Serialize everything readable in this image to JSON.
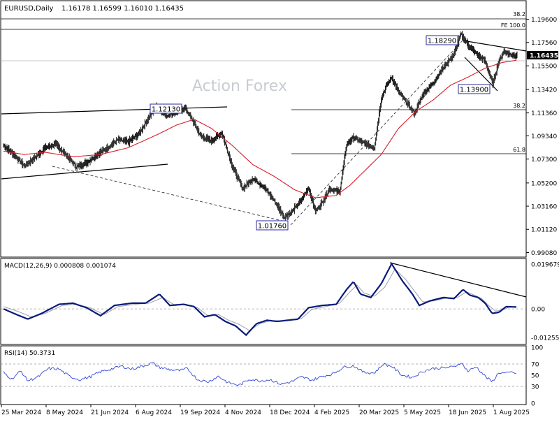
{
  "header": {
    "symbol": "EURUSD,Daily",
    "ohlc": "1.16178 1.16599 1.16010 1.16435"
  },
  "watermark": "Action Forex",
  "colors": {
    "bars": "#1a1a1a",
    "sma": "#d61f2a",
    "macd_line": "#0a1a7a",
    "signal_line": "#9aa0a8",
    "rsi_line": "#3048d8",
    "label_box_border": "#2a2aa0",
    "grid": "#cfcfcf"
  },
  "chart_data": [
    {
      "type": "ohlc",
      "panel": "price",
      "title": "EURUSD,Daily",
      "ylim": [
        0.988,
        1.208
      ],
      "y_ticks": [
        "1.19600",
        "1.17560",
        "1.15500",
        "1.13420",
        "1.11360",
        "1.09340",
        "1.07300",
        "1.05200",
        "1.03160",
        "1.01120",
        "0.99080"
      ],
      "last_price_label": "1.16435",
      "x_tick_labels": [
        "25 Mar 2024",
        "8 May 2024",
        "21 Jun 2024",
        "6 Aug 2024",
        "19 Sep 2024",
        "4 Nov 2024",
        "18 Dec 2024",
        "4 Feb 2025",
        "20 Mar 2025",
        "5 May 2025",
        "18 Jun 2025",
        "1 Aug 2025"
      ],
      "keypoints": [
        [
          0,
          1.085
        ],
        [
          15,
          1.077
        ],
        [
          30,
          1.067
        ],
        [
          45,
          1.074
        ],
        [
          60,
          1.083
        ],
        [
          75,
          1.086
        ],
        [
          90,
          1.077
        ],
        [
          105,
          1.066
        ],
        [
          120,
          1.07
        ],
        [
          135,
          1.077
        ],
        [
          150,
          1.083
        ],
        [
          165,
          1.09
        ],
        [
          180,
          1.088
        ],
        [
          195,
          1.095
        ],
        [
          210,
          1.11
        ],
        [
          220,
          1.119
        ],
        [
          235,
          1.111
        ],
        [
          250,
          1.115
        ],
        [
          262,
          1.118
        ],
        [
          272,
          1.108
        ],
        [
          285,
          1.093
        ],
        [
          300,
          1.089
        ],
        [
          315,
          1.096
        ],
        [
          330,
          1.067
        ],
        [
          345,
          1.047
        ],
        [
          360,
          1.056
        ],
        [
          375,
          1.049
        ],
        [
          390,
          1.037
        ],
        [
          405,
          1.022
        ],
        [
          415,
          1.026
        ],
        [
          430,
          1.037
        ],
        [
          440,
          1.048
        ],
        [
          450,
          1.027
        ],
        [
          460,
          1.035
        ],
        [
          470,
          1.047
        ],
        [
          485,
          1.044
        ],
        [
          495,
          1.086
        ],
        [
          505,
          1.092
        ],
        [
          520,
          1.087
        ],
        [
          535,
          1.083
        ],
        [
          545,
          1.126
        ],
        [
          552,
          1.137
        ],
        [
          560,
          1.145
        ],
        [
          570,
          1.132
        ],
        [
          580,
          1.124
        ],
        [
          593,
          1.113
        ],
        [
          605,
          1.13
        ],
        [
          620,
          1.14
        ],
        [
          635,
          1.154
        ],
        [
          650,
          1.165
        ],
        [
          660,
          1.1829
        ],
        [
          672,
          1.172
        ],
        [
          685,
          1.164
        ],
        [
          695,
          1.159
        ],
        [
          706,
          1.139
        ],
        [
          714,
          1.158
        ],
        [
          722,
          1.168
        ],
        [
          730,
          1.165
        ],
        [
          741,
          1.16435
        ]
      ],
      "sma_keypoints": [
        [
          0,
          1.08
        ],
        [
          30,
          1.077
        ],
        [
          60,
          1.079
        ],
        [
          100,
          1.075
        ],
        [
          140,
          1.077
        ],
        [
          180,
          1.083
        ],
        [
          220,
          1.094
        ],
        [
          250,
          1.103
        ],
        [
          275,
          1.108
        ],
        [
          300,
          1.1
        ],
        [
          330,
          1.085
        ],
        [
          360,
          1.068
        ],
        [
          390,
          1.058
        ],
        [
          420,
          1.046
        ],
        [
          450,
          1.039
        ],
        [
          480,
          1.041
        ],
        [
          500,
          1.05
        ],
        [
          520,
          1.062
        ],
        [
          545,
          1.077
        ],
        [
          570,
          1.1
        ],
        [
          595,
          1.115
        ],
        [
          620,
          1.125
        ],
        [
          645,
          1.138
        ],
        [
          670,
          1.145
        ],
        [
          695,
          1.153
        ],
        [
          720,
          1.158
        ],
        [
          741,
          1.16
        ]
      ],
      "annotations": {
        "labels": [
          "1.18290",
          "1.13900",
          "1.12130",
          "1.01760"
        ],
        "fib_labels": [
          "38.2",
          "FE 100.0",
          "38.2",
          "61.8"
        ]
      }
    },
    {
      "type": "line",
      "panel": "macd",
      "title": "MACD(12,26,9) 0.000808 0.001074",
      "ylim": [
        -0.015,
        0.0215
      ],
      "y_ticks": [
        "0.019679",
        "0.00",
        "-0.012552"
      ],
      "series": [
        {
          "name": "MACD",
          "keypoints": [
            [
              0,
              0.0
            ],
            [
              15,
              -0.002
            ],
            [
              35,
              -0.0045
            ],
            [
              55,
              -0.002
            ],
            [
              80,
              0.002
            ],
            [
              100,
              0.0025
            ],
            [
              120,
              0.0005
            ],
            [
              140,
              -0.003
            ],
            [
              160,
              0.0015
            ],
            [
              185,
              0.0025
            ],
            [
              205,
              0.0025
            ],
            [
              225,
              0.0065
            ],
            [
              240,
              0.0015
            ],
            [
              260,
              0.002
            ],
            [
              275,
              0.001
            ],
            [
              290,
              -0.0035
            ],
            [
              305,
              -0.0025
            ],
            [
              320,
              -0.0055
            ],
            [
              335,
              -0.0075
            ],
            [
              350,
              -0.0115
            ],
            [
              365,
              -0.0065
            ],
            [
              380,
              -0.005
            ],
            [
              395,
              -0.0055
            ],
            [
              410,
              -0.005
            ],
            [
              425,
              -0.0045
            ],
            [
              440,
              0.0005
            ],
            [
              460,
              0.0015
            ],
            [
              480,
              0.002
            ],
            [
              495,
              0.0085
            ],
            [
              505,
              0.012
            ],
            [
              515,
              0.0065
            ],
            [
              530,
              0.005
            ],
            [
              545,
              0.011
            ],
            [
              560,
              0.0198
            ],
            [
              575,
              0.0125
            ],
            [
              590,
              0.0065
            ],
            [
              600,
              0.0015
            ],
            [
              615,
              0.0035
            ],
            [
              635,
              0.005
            ],
            [
              650,
              0.0045
            ],
            [
              663,
              0.0085
            ],
            [
              673,
              0.006
            ],
            [
              685,
              0.005
            ],
            [
              695,
              0.0025
            ],
            [
              705,
              -0.002
            ],
            [
              715,
              -0.0015
            ],
            [
              725,
              0.001
            ],
            [
              741,
              0.0008
            ]
          ]
        },
        {
          "name": "Signal",
          "keypoints": [
            [
              0,
              0.001
            ],
            [
              20,
              -0.001
            ],
            [
              40,
              -0.0035
            ],
            [
              60,
              -0.002
            ],
            [
              85,
              0.0015
            ],
            [
              105,
              0.002
            ],
            [
              125,
              0.0005
            ],
            [
              145,
              -0.0025
            ],
            [
              165,
              0.001
            ],
            [
              190,
              0.002
            ],
            [
              210,
              0.0025
            ],
            [
              230,
              0.005
            ],
            [
              245,
              0.002
            ],
            [
              265,
              0.0018
            ],
            [
              280,
              0.0005
            ],
            [
              295,
              -0.003
            ],
            [
              310,
              -0.0025
            ],
            [
              325,
              -0.005
            ],
            [
              340,
              -0.0068
            ],
            [
              355,
              -0.0095
            ],
            [
              370,
              -0.0065
            ],
            [
              385,
              -0.0052
            ],
            [
              400,
              -0.0053
            ],
            [
              415,
              -0.005
            ],
            [
              430,
              -0.0042
            ],
            [
              445,
              -0.0002
            ],
            [
              465,
              0.001
            ],
            [
              485,
              0.0025
            ],
            [
              500,
              0.0075
            ],
            [
              510,
              0.0105
            ],
            [
              520,
              0.007
            ],
            [
              535,
              0.0055
            ],
            [
              550,
              0.0095
            ],
            [
              565,
              0.0175
            ],
            [
              580,
              0.013
            ],
            [
              595,
              0.007
            ],
            [
              605,
              0.003
            ],
            [
              620,
              0.0035
            ],
            [
              640,
              0.0048
            ],
            [
              655,
              0.005
            ],
            [
              668,
              0.0075
            ],
            [
              678,
              0.0062
            ],
            [
              690,
              0.0045
            ],
            [
              700,
              0.0015
            ],
            [
              710,
              -0.001
            ],
            [
              720,
              -0.0005
            ],
            [
              730,
              0.0008
            ],
            [
              741,
              0.00107
            ]
          ]
        }
      ]
    },
    {
      "type": "line",
      "panel": "rsi",
      "title": "RSI(14) 50.3731",
      "ylim": [
        0,
        100
      ],
      "y_ticks": [
        "100",
        "70",
        "50",
        "30",
        "0"
      ],
      "reference_levels": [
        70,
        30
      ],
      "series": [
        {
          "name": "RSI",
          "keypoints": [
            [
              0,
              55
            ],
            [
              12,
              43
            ],
            [
              25,
              58
            ],
            [
              35,
              40
            ],
            [
              50,
              47
            ],
            [
              65,
              62
            ],
            [
              80,
              61
            ],
            [
              95,
              48
            ],
            [
              110,
              42
            ],
            [
              125,
              47
            ],
            [
              140,
              56
            ],
            [
              155,
              61
            ],
            [
              170,
              66
            ],
            [
              185,
              61
            ],
            [
              200,
              66
            ],
            [
              215,
              72
            ],
            [
              225,
              64
            ],
            [
              240,
              60
            ],
            [
              255,
              58
            ],
            [
              265,
              62
            ],
            [
              280,
              42
            ],
            [
              295,
              38
            ],
            [
              310,
              48
            ],
            [
              325,
              36
            ],
            [
              340,
              32
            ],
            [
              355,
              43
            ],
            [
              370,
              40
            ],
            [
              385,
              42
            ],
            [
              400,
              34
            ],
            [
              415,
              38
            ],
            [
              430,
              47
            ],
            [
              445,
              41
            ],
            [
              460,
              48
            ],
            [
              475,
              52
            ],
            [
              490,
              64
            ],
            [
              505,
              67
            ],
            [
              520,
              55
            ],
            [
              535,
              54
            ],
            [
              548,
              70
            ],
            [
              560,
              66
            ],
            [
              575,
              50
            ],
            [
              590,
              46
            ],
            [
              605,
              57
            ],
            [
              620,
              62
            ],
            [
              635,
              63
            ],
            [
              650,
              65
            ],
            [
              660,
              73
            ],
            [
              670,
              57
            ],
            [
              682,
              65
            ],
            [
              695,
              48
            ],
            [
              705,
              38
            ],
            [
              715,
              55
            ],
            [
              725,
              53
            ],
            [
              735,
              56
            ],
            [
              741,
              50.37
            ]
          ]
        }
      ]
    }
  ]
}
